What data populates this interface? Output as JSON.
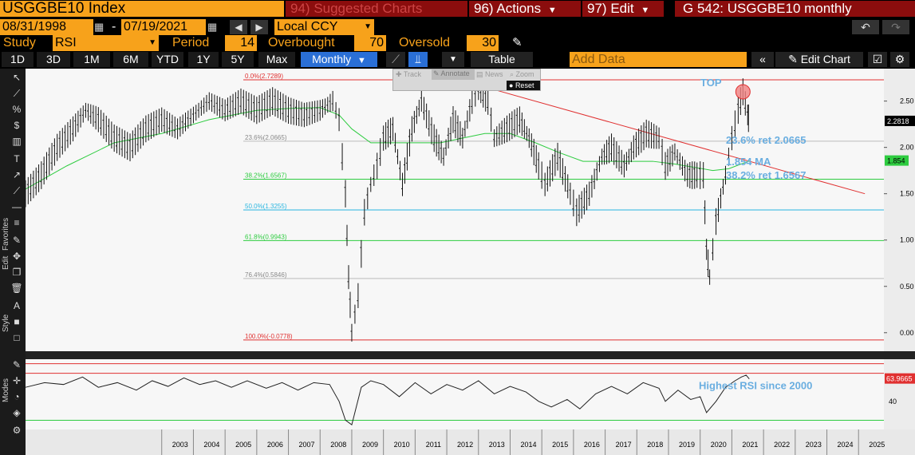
{
  "header": {
    "ticker": "USGGBE10 Index",
    "suggested_num": "94)",
    "suggested_label": "Suggested Charts",
    "actions_num": "96)",
    "actions_label": "Actions",
    "edit_num": "97)",
    "edit_label": "Edit",
    "window_title": "G 542: USGGBE10 monthly"
  },
  "params": {
    "start_date": "08/31/1998",
    "end_date": "07/19/2021",
    "dash": "-",
    "currency": "Local CCY",
    "study_label": "Study",
    "study_value": "RSI",
    "period_label": "Period",
    "period_value": "14",
    "overbought_label": "Overbought",
    "overbought_value": "70",
    "oversold_label": "Oversold",
    "oversold_value": "30"
  },
  "toolbar": {
    "ranges": [
      "1D",
      "3D",
      "1M",
      "6M",
      "YTD",
      "1Y",
      "5Y",
      "Max"
    ],
    "frequency": "Monthly",
    "table_label": "Table",
    "add_data_placeholder": "Add Data",
    "edit_chart_label": "Edit Chart"
  },
  "floating": {
    "track": "Track",
    "annotate": "Annotate",
    "news": "News",
    "zoom": "Zoom",
    "reset": "Reset"
  },
  "sidebar": {
    "favorites": "Favorites",
    "edit": "Edit",
    "style": "Style",
    "modes": "Modes"
  },
  "colors": {
    "accent": "#f7a21b",
    "darkred": "#8b0d0d",
    "price": "#000000",
    "ma": "#2ecc40",
    "trend": "#e03030",
    "annot": "#6aaee0"
  },
  "chart_data": {
    "type": "line",
    "x_years": [
      "2003",
      "2004",
      "2005",
      "2006",
      "2007",
      "2008",
      "2009",
      "2010",
      "2011",
      "2012",
      "2013",
      "2014",
      "2015",
      "2016",
      "2017",
      "2018",
      "2019",
      "2020",
      "2021",
      "2022",
      "2023",
      "2024",
      "2025"
    ],
    "y_ticks": [
      "2.50",
      "2.00",
      "1.50",
      "1.00",
      "0.50",
      "0.00"
    ],
    "ylim": [
      -0.2,
      2.85
    ],
    "fib_levels": [
      {
        "label": "0.0%(2.7289)",
        "value": 2.7289
      },
      {
        "label": "23.6%(2.0665)",
        "value": 2.0665
      },
      {
        "label": "38.2%(1.6567)",
        "value": 1.6567
      },
      {
        "label": "50.0%(1.3255)",
        "value": 1.3255
      },
      {
        "label": "61.8%(0.9943)",
        "value": 0.9943
      },
      {
        "label": "76.4%(0.5846)",
        "value": 0.5846
      },
      {
        "label": "100.0%(-0.0778)",
        "value": -0.0778
      }
    ],
    "last_price": "2.2818",
    "ma_value": "1.854",
    "annotations": {
      "top": "TOP",
      "ret236": "23.6% ret 2.0665",
      "ma": "1.854 MA",
      "ret382": "38.2% ret 1.6567",
      "rsi": "Highest RSI since 2000"
    },
    "price": [
      [
        1998.7,
        1.5
      ],
      [
        1999.2,
        1.7
      ],
      [
        1999.7,
        2.0
      ],
      [
        2000.2,
        2.2
      ],
      [
        2000.6,
        2.4
      ],
      [
        2001.0,
        2.3
      ],
      [
        2001.5,
        2.1
      ],
      [
        2002.0,
        2.0
      ],
      [
        2002.5,
        2.2
      ],
      [
        2003.0,
        2.3
      ],
      [
        2003.5,
        2.2
      ],
      [
        2004.0,
        2.35
      ],
      [
        2004.5,
        2.5
      ],
      [
        2005.0,
        2.4
      ],
      [
        2005.5,
        2.5
      ],
      [
        2006.0,
        2.4
      ],
      [
        2006.5,
        2.5
      ],
      [
        2007.0,
        2.4
      ],
      [
        2007.5,
        2.35
      ],
      [
        2008.0,
        2.4
      ],
      [
        2008.4,
        2.5
      ],
      [
        2008.6,
        2.3
      ],
      [
        2008.8,
        1.5
      ],
      [
        2008.9,
        0.6
      ],
      [
        2009.0,
        0.0
      ],
      [
        2009.2,
        0.4
      ],
      [
        2009.4,
        1.3
      ],
      [
        2009.6,
        1.6
      ],
      [
        2009.8,
        1.8
      ],
      [
        2010.0,
        2.1
      ],
      [
        2010.3,
        2.2
      ],
      [
        2010.6,
        1.6
      ],
      [
        2010.9,
        2.2
      ],
      [
        2011.2,
        2.5
      ],
      [
        2011.6,
        2.1
      ],
      [
        2011.9,
        1.9
      ],
      [
        2012.2,
        2.3
      ],
      [
        2012.5,
        2.1
      ],
      [
        2012.8,
        2.5
      ],
      [
        2013.0,
        2.6
      ],
      [
        2013.3,
        2.5
      ],
      [
        2013.5,
        2.1
      ],
      [
        2013.9,
        2.2
      ],
      [
        2014.3,
        2.3
      ],
      [
        2014.6,
        2.1
      ],
      [
        2014.9,
        1.8
      ],
      [
        2015.1,
        1.6
      ],
      [
        2015.5,
        1.9
      ],
      [
        2015.9,
        1.5
      ],
      [
        2016.1,
        1.3
      ],
      [
        2016.5,
        1.5
      ],
      [
        2016.9,
        1.9
      ],
      [
        2017.2,
        2.0
      ],
      [
        2017.6,
        1.8
      ],
      [
        2017.9,
        2.0
      ],
      [
        2018.3,
        2.15
      ],
      [
        2018.7,
        2.1
      ],
      [
        2018.9,
        1.8
      ],
      [
        2019.2,
        1.95
      ],
      [
        2019.6,
        1.7
      ],
      [
        2019.9,
        1.7
      ],
      [
        2020.1,
        1.7
      ],
      [
        2020.2,
        0.9
      ],
      [
        2020.3,
        0.6
      ],
      [
        2020.5,
        1.2
      ],
      [
        2020.8,
        1.7
      ],
      [
        2021.0,
        2.1
      ],
      [
        2021.2,
        2.4
      ],
      [
        2021.35,
        2.6
      ],
      [
        2021.5,
        2.35
      ],
      [
        2021.55,
        2.28
      ]
    ],
    "ma": [
      [
        1998.7,
        1.55
      ],
      [
        2000.0,
        1.8
      ],
      [
        2001.5,
        2.05
      ],
      [
        2003.0,
        2.15
      ],
      [
        2004.5,
        2.3
      ],
      [
        2006.0,
        2.4
      ],
      [
        2007.0,
        2.42
      ],
      [
        2008.0,
        2.43
      ],
      [
        2008.6,
        2.35
      ],
      [
        2009.0,
        2.2
      ],
      [
        2009.6,
        2.05
      ],
      [
        2010.3,
        2.05
      ],
      [
        2011.0,
        2.05
      ],
      [
        2011.8,
        2.05
      ],
      [
        2012.5,
        2.1
      ],
      [
        2013.2,
        2.15
      ],
      [
        2014.0,
        2.15
      ],
      [
        2014.8,
        2.05
      ],
      [
        2015.5,
        1.95
      ],
      [
        2016.3,
        1.85
      ],
      [
        2017.0,
        1.85
      ],
      [
        2017.8,
        1.85
      ],
      [
        2018.5,
        1.85
      ],
      [
        2019.2,
        1.82
      ],
      [
        2019.9,
        1.78
      ],
      [
        2020.4,
        1.75
      ],
      [
        2020.9,
        1.77
      ],
      [
        2021.55,
        1.854
      ]
    ],
    "trendline": [
      [
        2012.4,
        2.7289
      ],
      [
        2025.2,
        1.5
      ]
    ],
    "rsi": {
      "last_value": "63.9665",
      "ticks": [
        "40"
      ],
      "values": [
        [
          1998.7,
          55
        ],
        [
          1999.3,
          60
        ],
        [
          1999.9,
          58
        ],
        [
          2000.5,
          66
        ],
        [
          2001.0,
          55
        ],
        [
          2001.6,
          60
        ],
        [
          2002.2,
          52
        ],
        [
          2002.7,
          62
        ],
        [
          2003.2,
          56
        ],
        [
          2003.7,
          65
        ],
        [
          2004.2,
          58
        ],
        [
          2004.7,
          62
        ],
        [
          2005.2,
          55
        ],
        [
          2005.7,
          62
        ],
        [
          2006.3,
          54
        ],
        [
          2006.8,
          60
        ],
        [
          2007.3,
          52
        ],
        [
          2007.8,
          60
        ],
        [
          2008.3,
          58
        ],
        [
          2008.6,
          40
        ],
        [
          2008.8,
          20
        ],
        [
          2009.0,
          15
        ],
        [
          2009.3,
          55
        ],
        [
          2009.6,
          62
        ],
        [
          2010.0,
          58
        ],
        [
          2010.5,
          45
        ],
        [
          2011.0,
          60
        ],
        [
          2011.5,
          48
        ],
        [
          2012.0,
          58
        ],
        [
          2012.5,
          52
        ],
        [
          2013.0,
          62
        ],
        [
          2013.5,
          48
        ],
        [
          2014.0,
          56
        ],
        [
          2014.5,
          50
        ],
        [
          2014.9,
          40
        ],
        [
          2015.3,
          34
        ],
        [
          2015.8,
          42
        ],
        [
          2016.2,
          32
        ],
        [
          2016.7,
          48
        ],
        [
          2017.2,
          56
        ],
        [
          2017.7,
          48
        ],
        [
          2018.2,
          60
        ],
        [
          2018.7,
          54
        ],
        [
          2018.9,
          40
        ],
        [
          2019.3,
          52
        ],
        [
          2019.7,
          42
        ],
        [
          2020.0,
          45
        ],
        [
          2020.2,
          28
        ],
        [
          2020.5,
          40
        ],
        [
          2020.8,
          55
        ],
        [
          2021.1,
          62
        ],
        [
          2021.3,
          66
        ],
        [
          2021.45,
          68
        ],
        [
          2021.55,
          64
        ]
      ]
    }
  }
}
